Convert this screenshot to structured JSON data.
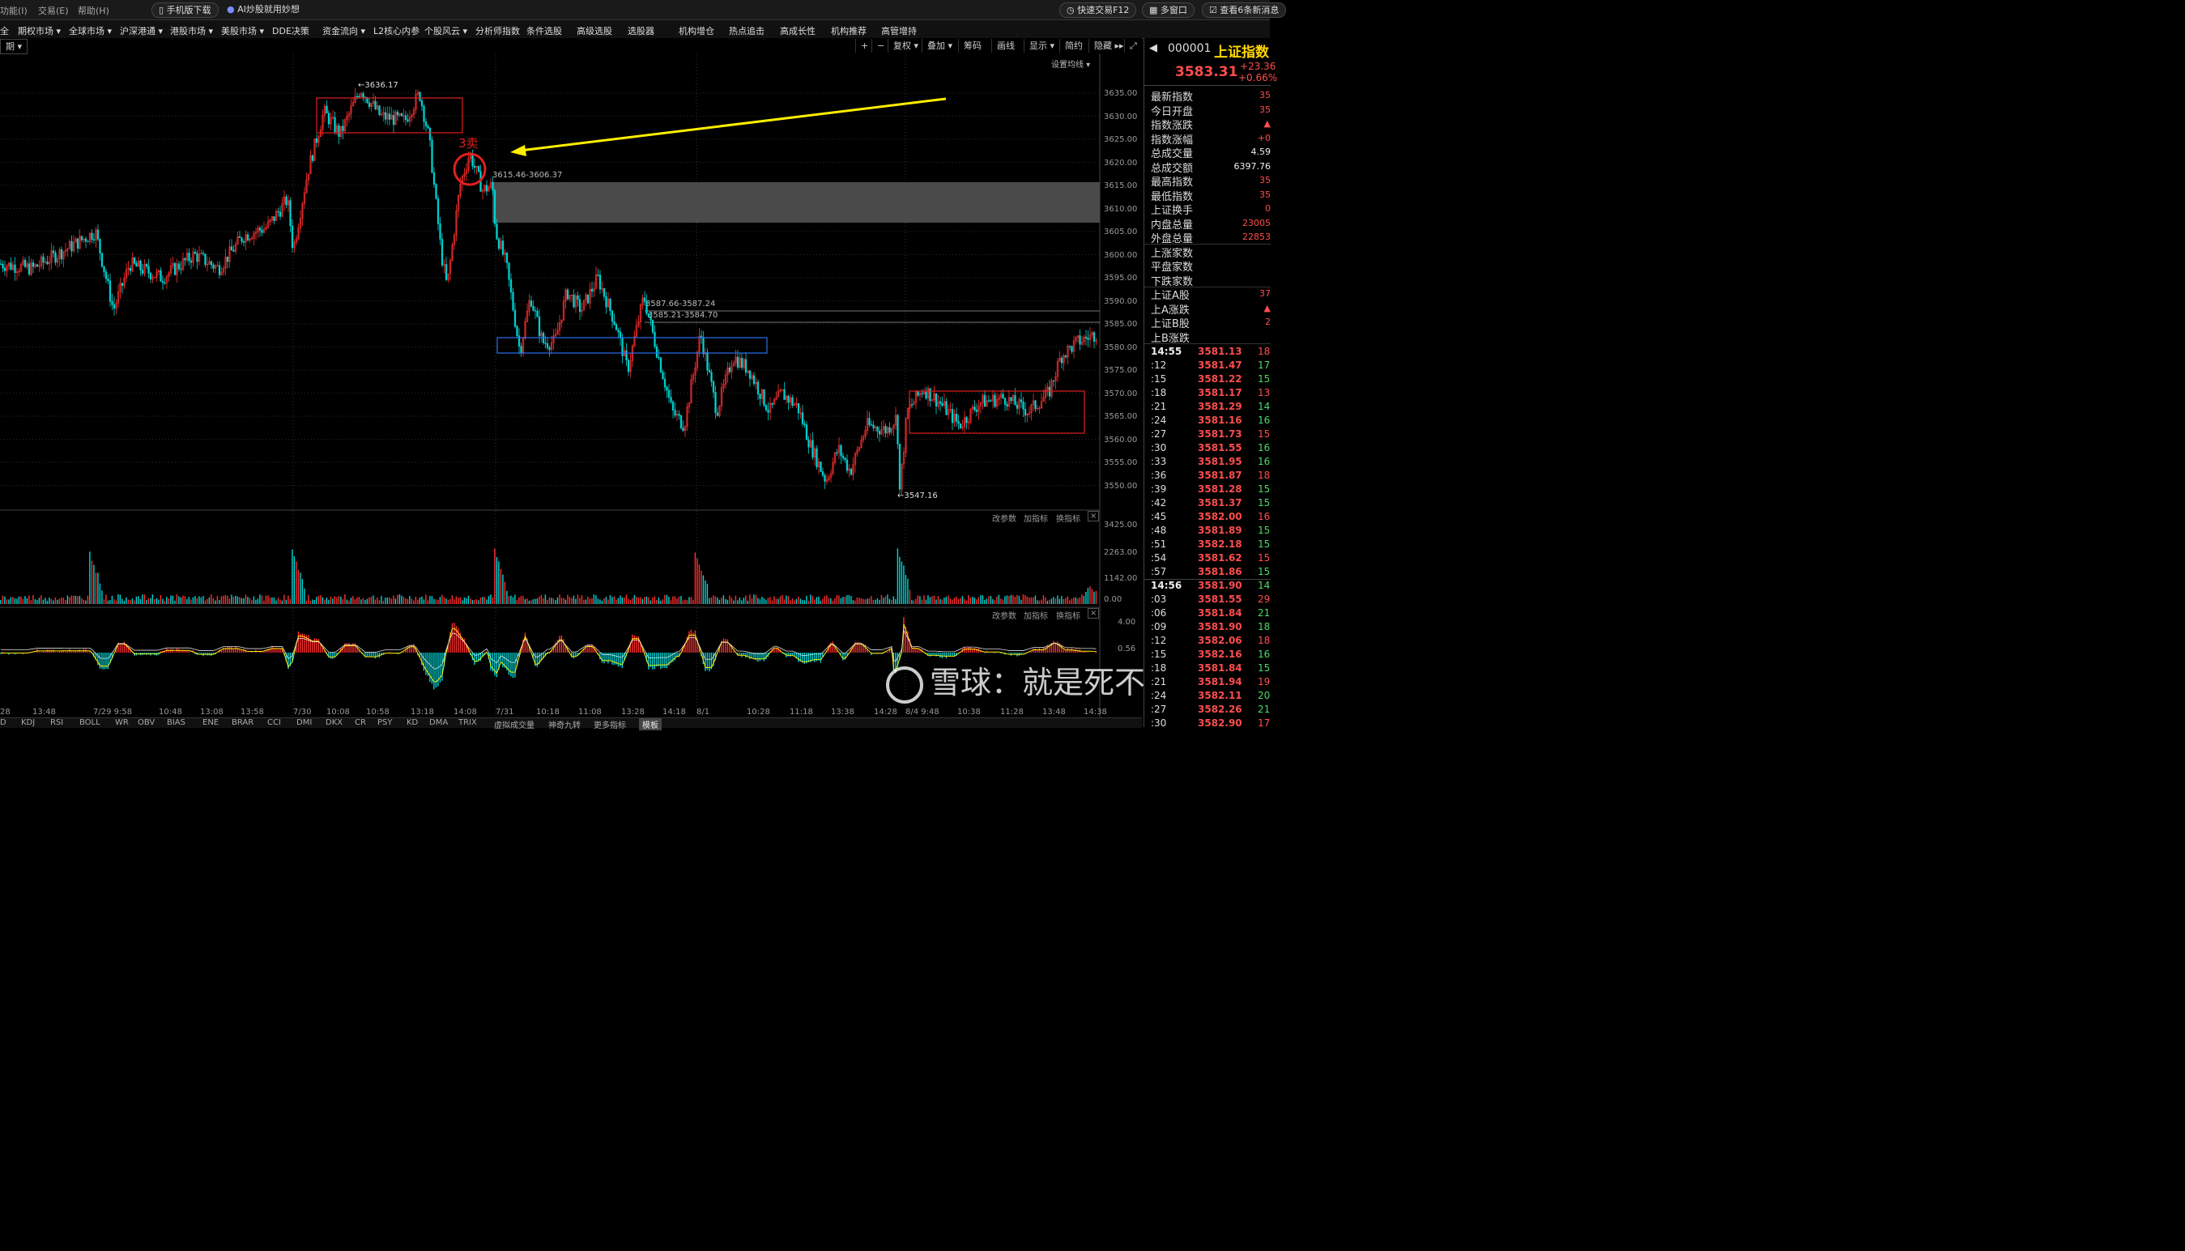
{
  "menubar": {
    "items": [
      "功能(I)",
      "交易(E)",
      "帮助(H)"
    ],
    "mobile_btn": "手机版下载",
    "ai_btn": "AI炒股就用妙想",
    "quick_trade": "快速交易F12",
    "multi_window": "多窗口",
    "news": "查看6条新消息"
  },
  "navbar": {
    "items": [
      "全",
      "期权市场",
      "全球市场",
      "沪深港通",
      "港股市场",
      "美股市场",
      "DDE决策",
      "资金流向",
      "L2核心内参",
      "个股风云",
      "分析师指数",
      "条件选股",
      "高级选股",
      "选股器",
      "机构增仓",
      "热点追击",
      "高成长性",
      "机构推荐",
      "高管增持"
    ]
  },
  "toolbar": {
    "period": "期",
    "buttons": [
      "+",
      "−",
      "复权",
      "叠加",
      "筹码",
      "画线",
      "显示",
      "简约",
      "隐藏"
    ],
    "ma_setting": "设置均线"
  },
  "indicator_bar": {
    "change_param": "改参数",
    "add_indicator": "加指标",
    "switch_indicator": "换指标"
  },
  "annotations": {
    "high_label": "3636.17",
    "low_label": "3547.16",
    "sell_label": "3卖",
    "gap_label": "3615.46-3606.37",
    "gap2_label": "3587.66-3587.24",
    "gap3_label": "3585.21-3584.70"
  },
  "price_axis": [
    "3635.00",
    "3630.00",
    "3625.00",
    "3620.00",
    "3615.00",
    "3610.00",
    "3605.00",
    "3600.00",
    "3595.00",
    "3590.00",
    "3585.00",
    "3580.00",
    "3575.00",
    "3570.00",
    "3565.00",
    "3560.00",
    "3555.00",
    "3550.00"
  ],
  "vol_axis": [
    "3425.00",
    "2263.00",
    "1142.00",
    "0.00"
  ],
  "macd_axis": [
    "4.00",
    "0.56"
  ],
  "x_axis": [
    "28",
    "13:48",
    "7/29 9:58",
    "10:48",
    "13:08",
    "13:58",
    "7/30",
    "10:08",
    "10:58",
    "13:18",
    "14:08",
    "7/31",
    "10:18",
    "11:08",
    "13:28",
    "14:18",
    "8/1",
    "10:28",
    "11:18",
    "13:38",
    "14:28",
    "8/4 9:48",
    "10:38",
    "11:28",
    "13:48",
    "14:38"
  ],
  "bottom_tabs": [
    "D",
    "KDJ",
    "RSI",
    "BOLL",
    "WR",
    "OBV",
    "BIAS",
    "ENE",
    "BRAR",
    "CCI",
    "DMI",
    "DKX",
    "CR",
    "PSY",
    "KD",
    "DMA",
    "TRIX",
    "虚拟成交量",
    "神奇九转",
    "更多指标",
    "模板"
  ],
  "watermark": "雪球：就是死不了",
  "quote": {
    "code": "000001",
    "name": "上证指数",
    "price": "3583.31",
    "change": "+23.36",
    "change_pct": "+0.66%",
    "labels": [
      "最新指数",
      "今日开盘",
      "指数涨跌",
      "指数涨幅",
      "总成交量",
      "总成交额",
      "最高指数",
      "最低指数",
      "上证换手",
      "内盘总量",
      "外盘总量",
      "上涨家数",
      "平盘家数",
      "下跌家数",
      "上证A股",
      "上A涨跌",
      "上证B股",
      "上B涨跌"
    ],
    "values": [
      "35",
      "35",
      "▲",
      "+0",
      "4.59",
      "6397.76",
      "35",
      "35",
      "0",
      "23005",
      "22853",
      "",
      "",
      "",
      "37",
      "▲",
      "2",
      ""
    ]
  },
  "ticks": [
    {
      "time": "14:55",
      "price": "3581.13",
      "vol": "18"
    },
    {
      "time": ":12",
      "price": "3581.47",
      "vol": "17"
    },
    {
      "time": ":15",
      "price": "3581.22",
      "vol": "15"
    },
    {
      "time": ":18",
      "price": "3581.17",
      "vol": "13"
    },
    {
      "time": ":21",
      "price": "3581.29",
      "vol": "14"
    },
    {
      "time": ":24",
      "price": "3581.16",
      "vol": "16"
    },
    {
      "time": ":27",
      "price": "3581.73",
      "vol": "15"
    },
    {
      "time": ":30",
      "price": "3581.55",
      "vol": "16"
    },
    {
      "time": ":33",
      "price": "3581.95",
      "vol": "16"
    },
    {
      "time": ":36",
      "price": "3581.87",
      "vol": "18"
    },
    {
      "time": ":39",
      "price": "3581.28",
      "vol": "15"
    },
    {
      "time": ":42",
      "price": "3581.37",
      "vol": "15"
    },
    {
      "time": ":45",
      "price": "3582.00",
      "vol": "16"
    },
    {
      "time": ":48",
      "price": "3581.89",
      "vol": "15"
    },
    {
      "time": ":51",
      "price": "3582.18",
      "vol": "15"
    },
    {
      "time": ":54",
      "price": "3581.62",
      "vol": "15"
    },
    {
      "time": ":57",
      "price": "3581.86",
      "vol": "15"
    },
    {
      "time": "14:56",
      "price": "3581.90",
      "vol": "14"
    },
    {
      "time": ":03",
      "price": "3581.55",
      "vol": "29"
    },
    {
      "time": ":06",
      "price": "3581.84",
      "vol": "21"
    },
    {
      "time": ":09",
      "price": "3581.90",
      "vol": "18"
    },
    {
      "time": ":12",
      "price": "3582.06",
      "vol": "18"
    },
    {
      "time": ":15",
      "price": "3582.16",
      "vol": "16"
    },
    {
      "time": ":18",
      "price": "3581.84",
      "vol": "15"
    },
    {
      "time": ":21",
      "price": "3581.94",
      "vol": "19"
    },
    {
      "time": ":24",
      "price": "3582.11",
      "vol": "20"
    },
    {
      "time": ":27",
      "price": "3582.26",
      "vol": "21"
    },
    {
      "time": ":30",
      "price": "3582.90",
      "vol": "17"
    }
  ]
}
